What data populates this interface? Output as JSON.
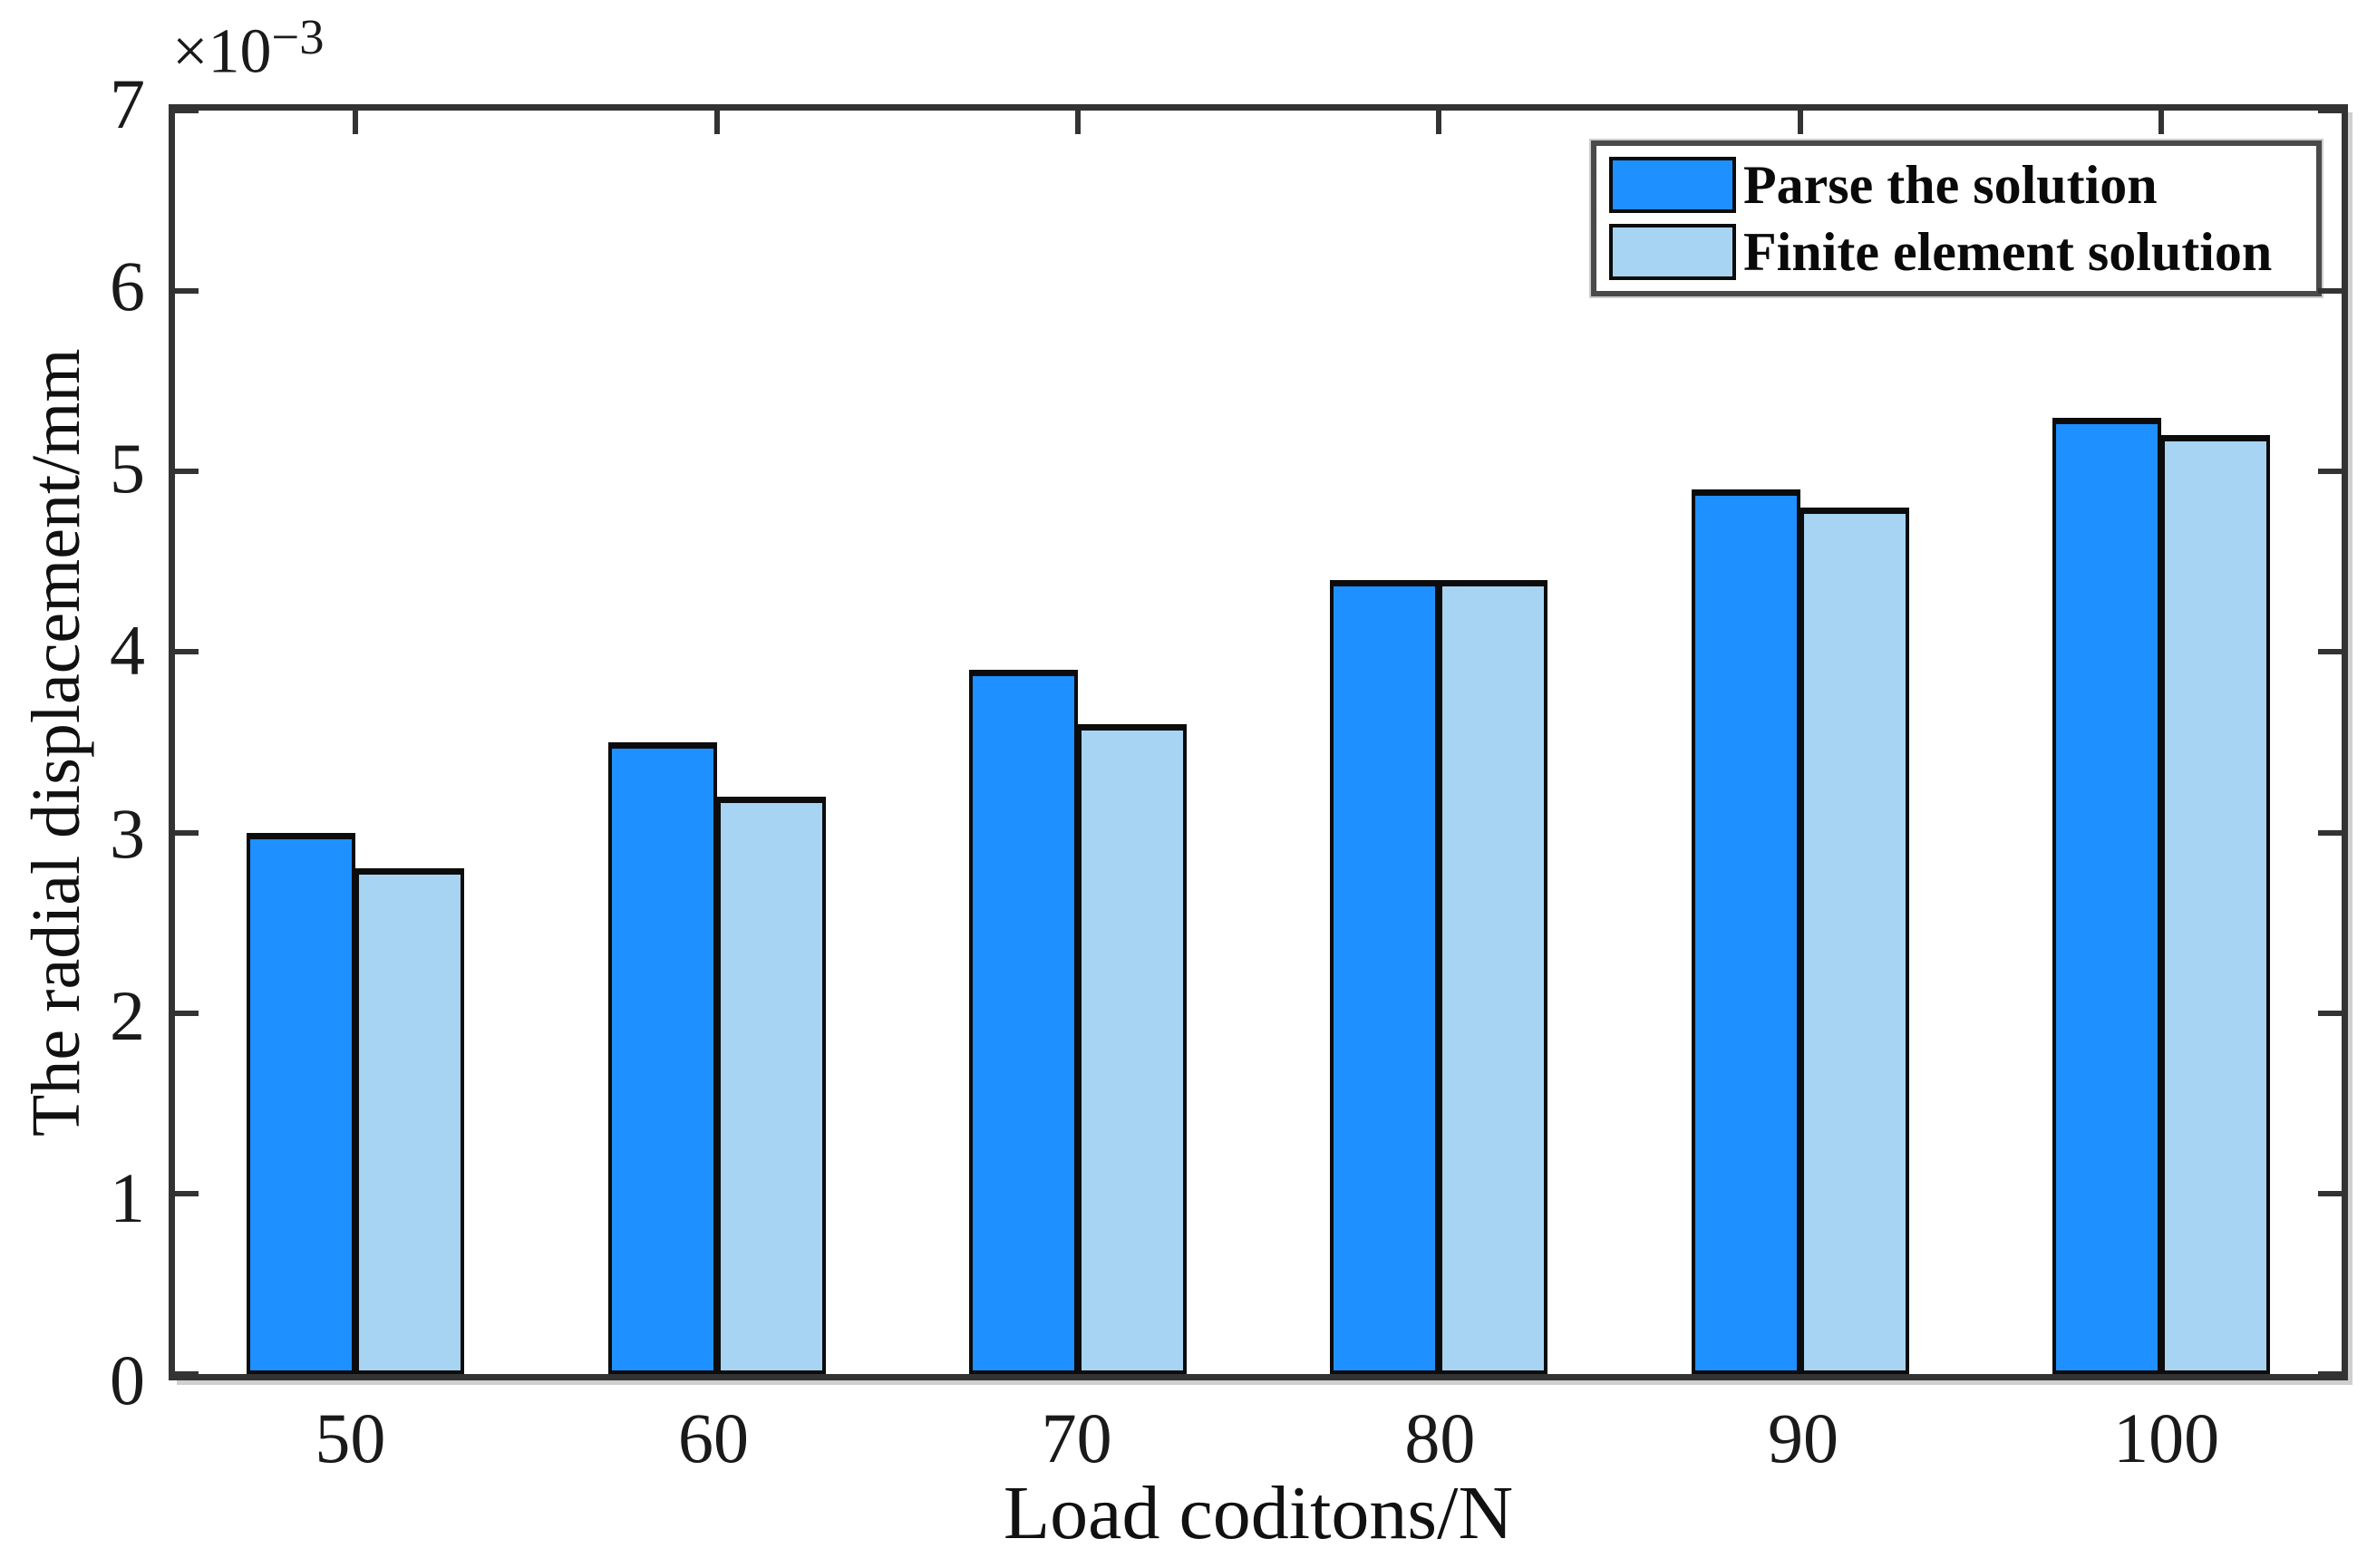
{
  "chart_data": {
    "type": "bar",
    "title": "",
    "xlabel": "Load coditons/N",
    "ylabel": "The radial displacement/mm",
    "y_multiplier": {
      "base": "×10",
      "exp": "−3"
    },
    "y_unit": "mm",
    "y_scale": "1e-3",
    "categories": [
      "50",
      "60",
      "70",
      "80",
      "90",
      "100"
    ],
    "series": [
      {
        "name": "Parse the solution",
        "color": "#1E90FF",
        "values": [
          3.0,
          3.5,
          3.9,
          4.4,
          4.9,
          5.3
        ]
      },
      {
        "name": "Finite element solution",
        "color": "#A6D4F2",
        "values": [
          2.8,
          3.2,
          3.6,
          4.4,
          4.8,
          5.2
        ]
      }
    ],
    "ylim": [
      0,
      7
    ],
    "yticks": [
      0,
      1,
      2,
      3,
      4,
      5,
      6,
      7
    ],
    "legend_position": "top-right",
    "grid": false,
    "axis_color": "#333333",
    "bar_edge_color": "#0c0c0c"
  }
}
